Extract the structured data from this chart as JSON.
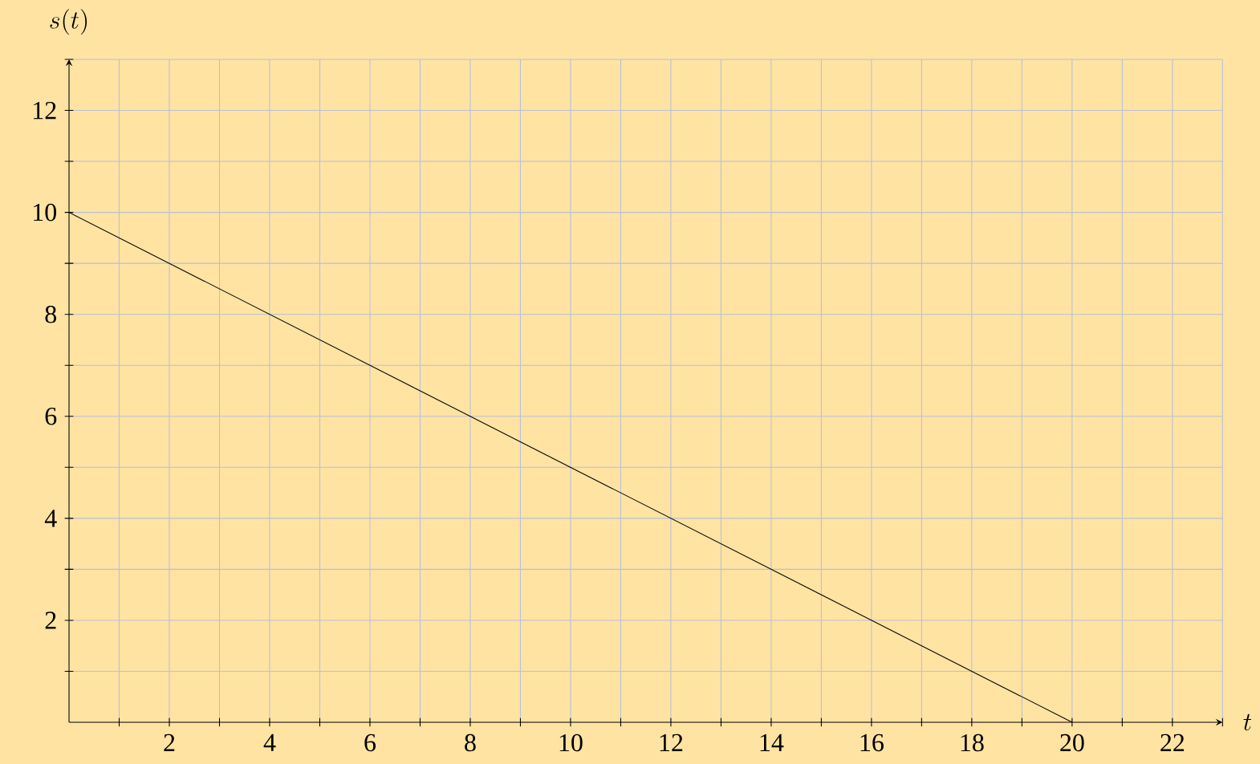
{
  "chart_data": {
    "type": "line",
    "xlabel": "t",
    "ylabel": "s(t)",
    "x": [
      0,
      20
    ],
    "series": [
      {
        "color": "#000000",
        "values": [
          10,
          0
        ]
      }
    ],
    "xlim": [
      0,
      23
    ],
    "ylim": [
      0,
      13
    ],
    "xticks": [
      {
        "value": 1,
        "label": null
      },
      2,
      {
        "value": 3,
        "label": null
      },
      4,
      {
        "value": 5,
        "label": null
      },
      6,
      {
        "value": 7,
        "label": null
      },
      8,
      {
        "value": 9,
        "label": null
      },
      10,
      {
        "value": 11,
        "label": null
      },
      12,
      {
        "value": 13,
        "label": null
      },
      14,
      {
        "value": 15,
        "label": null
      },
      16,
      {
        "value": 17,
        "label": null
      },
      18,
      {
        "value": 19,
        "label": null
      },
      20,
      {
        "value": 21,
        "label": null
      },
      22,
      {
        "value": 23,
        "label": null
      }
    ],
    "yticks": [
      {
        "value": 1,
        "label": null
      },
      2,
      {
        "value": 3,
        "label": null
      },
      4,
      {
        "value": 5,
        "label": null
      },
      6,
      {
        "value": 7,
        "label": null
      },
      8,
      {
        "value": 9,
        "label": null
      },
      10,
      {
        "value": 11,
        "label": null
      },
      12,
      {
        "value": 13,
        "label": null
      }
    ],
    "grid": true,
    "marker": "none",
    "line_style": "solid"
  }
}
